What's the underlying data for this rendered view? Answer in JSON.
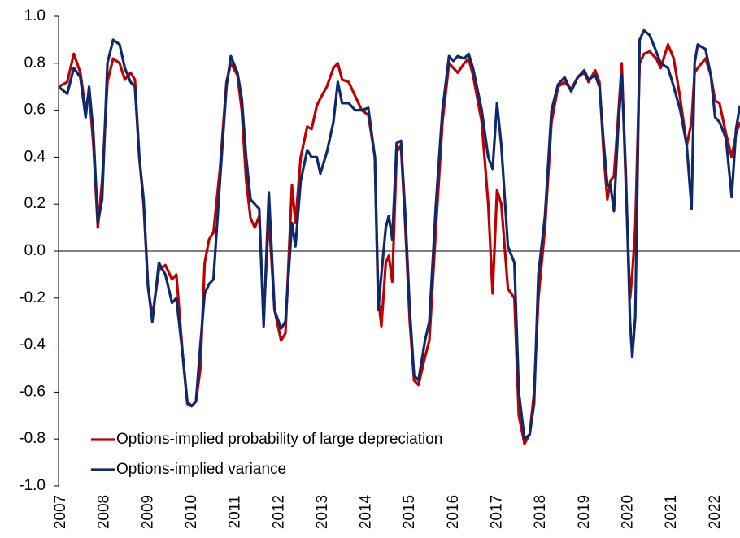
{
  "chart_data": {
    "type": "line",
    "x": [
      2007.0,
      2007.2,
      2007.35,
      2007.5,
      2007.62,
      2007.7,
      2007.8,
      2007.9,
      2008.0,
      2008.12,
      2008.25,
      2008.4,
      2008.52,
      2008.65,
      2008.75,
      2008.85,
      2008.95,
      2009.05,
      2009.15,
      2009.3,
      2009.45,
      2009.6,
      2009.7,
      2009.85,
      2009.95,
      2010.05,
      2010.15,
      2010.25,
      2010.35,
      2010.45,
      2010.55,
      2010.7,
      2010.85,
      2010.95,
      2011.1,
      2011.2,
      2011.3,
      2011.4,
      2011.5,
      2011.6,
      2011.7,
      2011.82,
      2011.95,
      2012.1,
      2012.2,
      2012.35,
      2012.43,
      2012.55,
      2012.7,
      2012.8,
      2012.92,
      2013.0,
      2013.15,
      2013.3,
      2013.4,
      2013.5,
      2013.65,
      2013.8,
      2013.95,
      2014.1,
      2014.25,
      2014.33,
      2014.4,
      2014.5,
      2014.57,
      2014.65,
      2014.75,
      2014.85,
      2014.95,
      2015.05,
      2015.15,
      2015.25,
      2015.4,
      2015.5,
      2015.65,
      2015.8,
      2015.95,
      2016.05,
      2016.15,
      2016.3,
      2016.4,
      2016.5,
      2016.7,
      2016.85,
      2016.95,
      2017.05,
      2017.15,
      2017.3,
      2017.45,
      2017.55,
      2017.68,
      2017.8,
      2017.9,
      2018.0,
      2018.15,
      2018.3,
      2018.45,
      2018.6,
      2018.75,
      2018.9,
      2019.05,
      2019.15,
      2019.3,
      2019.4,
      2019.5,
      2019.58,
      2019.65,
      2019.73,
      2019.82,
      2019.91,
      2020.0,
      2020.1,
      2020.15,
      2020.22,
      2020.32,
      2020.42,
      2020.55,
      2020.7,
      2020.8,
      2020.97,
      2021.1,
      2021.25,
      2021.4,
      2021.51,
      2021.58,
      2021.65,
      2021.83,
      2021.95,
      2022.05,
      2022.15,
      2022.3,
      2022.43,
      2022.53,
      2022.62
    ],
    "series": [
      {
        "name": "Options-implied probability of large depreciation",
        "color": "#c00000",
        "values": [
          0.7,
          0.72,
          0.84,
          0.76,
          0.6,
          0.68,
          0.45,
          0.1,
          0.3,
          0.72,
          0.82,
          0.8,
          0.73,
          0.76,
          0.73,
          0.4,
          0.2,
          -0.15,
          -0.28,
          -0.08,
          -0.06,
          -0.12,
          -0.1,
          -0.45,
          -0.65,
          -0.66,
          -0.64,
          -0.5,
          -0.05,
          0.05,
          0.08,
          0.35,
          0.72,
          0.8,
          0.75,
          0.6,
          0.3,
          0.14,
          0.1,
          0.15,
          -0.28,
          0.15,
          -0.25,
          -0.38,
          -0.35,
          0.28,
          0.12,
          0.4,
          0.53,
          0.52,
          0.62,
          0.65,
          0.7,
          0.78,
          0.8,
          0.73,
          0.72,
          0.66,
          0.6,
          0.58,
          0.4,
          -0.2,
          -0.32,
          -0.05,
          -0.02,
          -0.13,
          0.42,
          0.45,
          0.1,
          -0.3,
          -0.55,
          -0.57,
          -0.45,
          -0.38,
          0.1,
          0.55,
          0.8,
          0.78,
          0.76,
          0.8,
          0.82,
          0.75,
          0.55,
          0.2,
          -0.18,
          0.26,
          0.2,
          -0.16,
          -0.2,
          -0.7,
          -0.82,
          -0.78,
          -0.6,
          -0.2,
          0.1,
          0.55,
          0.7,
          0.72,
          0.69,
          0.74,
          0.76,
          0.72,
          0.77,
          0.72,
          0.4,
          0.22,
          0.3,
          0.32,
          0.55,
          0.8,
          0.3,
          -0.2,
          -0.1,
          0.1,
          0.8,
          0.84,
          0.85,
          0.82,
          0.78,
          0.88,
          0.82,
          0.65,
          0.45,
          0.55,
          0.76,
          0.78,
          0.82,
          0.75,
          0.64,
          0.63,
          0.5,
          0.4,
          0.5,
          0.55
        ]
      },
      {
        "name": "Options-implied variance",
        "color": "#0e2a6b",
        "values": [
          0.7,
          0.67,
          0.78,
          0.74,
          0.57,
          0.7,
          0.5,
          0.12,
          0.22,
          0.8,
          0.9,
          0.88,
          0.78,
          0.72,
          0.7,
          0.4,
          0.22,
          -0.15,
          -0.3,
          -0.05,
          -0.1,
          -0.22,
          -0.2,
          -0.45,
          -0.64,
          -0.66,
          -0.64,
          -0.4,
          -0.18,
          -0.14,
          -0.12,
          0.3,
          0.7,
          0.83,
          0.76,
          0.65,
          0.4,
          0.22,
          0.2,
          0.18,
          -0.32,
          0.25,
          -0.25,
          -0.33,
          -0.3,
          0.12,
          0.02,
          0.3,
          0.43,
          0.4,
          0.4,
          0.33,
          0.42,
          0.55,
          0.72,
          0.63,
          0.63,
          0.6,
          0.6,
          0.61,
          0.4,
          -0.25,
          -0.1,
          0.1,
          0.15,
          0.05,
          0.46,
          0.47,
          0.15,
          -0.25,
          -0.53,
          -0.55,
          -0.38,
          -0.3,
          0.2,
          0.6,
          0.83,
          0.81,
          0.83,
          0.82,
          0.84,
          0.78,
          0.6,
          0.4,
          0.35,
          0.63,
          0.45,
          0.02,
          -0.05,
          -0.6,
          -0.8,
          -0.78,
          -0.65,
          -0.1,
          0.15,
          0.6,
          0.71,
          0.74,
          0.68,
          0.74,
          0.77,
          0.73,
          0.75,
          0.7,
          0.45,
          0.28,
          0.28,
          0.17,
          0.5,
          0.75,
          0.35,
          -0.3,
          -0.45,
          -0.28,
          0.9,
          0.94,
          0.92,
          0.85,
          0.8,
          0.78,
          0.7,
          0.6,
          0.45,
          0.18,
          0.8,
          0.88,
          0.86,
          0.75,
          0.57,
          0.55,
          0.48,
          0.23,
          0.52,
          0.62
        ]
      }
    ],
    "xlim": [
      2007,
      2022.62
    ],
    "xticks": [
      2007,
      2008,
      2009,
      2010,
      2011,
      2012,
      2013,
      2014,
      2015,
      2016,
      2017,
      2018,
      2019,
      2020,
      2021,
      2022
    ],
    "ylim": [
      -1,
      1
    ],
    "yticks": [
      {
        "value": -1,
        "label": "-1.0"
      },
      -0.8,
      -0.6,
      -0.4,
      -0.2,
      {
        "value": 0,
        "label": "0.0"
      },
      0.2,
      0.4,
      0.6,
      0.8,
      {
        "value": 1,
        "label": "1.0"
      }
    ],
    "legend": "lower left",
    "grid": false
  }
}
